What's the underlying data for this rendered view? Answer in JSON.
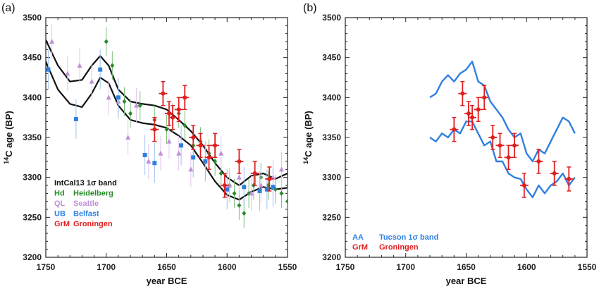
{
  "chart_data": [
    {
      "type": "scatter",
      "panel_label": "(a)",
      "xlabel": "year BCE",
      "ylabel_html": {
        "prefix": "14",
        "main": "C age (BP)"
      },
      "xlim": [
        1750,
        1550
      ],
      "ylim": [
        3200,
        3500
      ],
      "x_ticks": [
        "1750",
        "1700",
        "1650",
        "1600",
        "1550"
      ],
      "y_ticks": [
        "3200",
        "3250",
        "3300",
        "3350",
        "3400",
        "3450",
        "3500"
      ],
      "legend": [
        {
          "code": "IntCal13 1σ band",
          "name": "",
          "color": "#111111"
        },
        {
          "code": "Hd",
          "name": "Heidelberg",
          "color": "#2a8a2a"
        },
        {
          "code": "QL",
          "name": "Seattle",
          "color": "#c090d8"
        },
        {
          "code": "UB",
          "name": "Belfast",
          "color": "#2f7fe0"
        },
        {
          "code": "GrM",
          "name": "Groningen",
          "color": "#e02020"
        }
      ],
      "band": {
        "x": [
          1750,
          1740,
          1730,
          1720,
          1712,
          1705,
          1698,
          1690,
          1680,
          1670,
          1660,
          1650,
          1640,
          1630,
          1620,
          1610,
          1600,
          1590,
          1580,
          1570,
          1560,
          1550
        ],
        "upper": [
          3472,
          3440,
          3420,
          3422,
          3440,
          3452,
          3440,
          3410,
          3395,
          3392,
          3390,
          3385,
          3372,
          3358,
          3340,
          3318,
          3300,
          3290,
          3302,
          3305,
          3298,
          3305
        ],
        "lower": [
          3445,
          3410,
          3392,
          3388,
          3405,
          3425,
          3418,
          3390,
          3372,
          3368,
          3366,
          3362,
          3352,
          3340,
          3318,
          3295,
          3278,
          3272,
          3282,
          3288,
          3285,
          3287
        ]
      },
      "series": [
        {
          "name": "Heidelberg",
          "marker": "diamond",
          "color": "#2a8a2a",
          "x": [
            1700,
            1695,
            1685,
            1680,
            1672,
            1660,
            1650,
            1645,
            1640,
            1635,
            1628,
            1622,
            1615,
            1610,
            1605,
            1598,
            1594,
            1590,
            1586,
            1582,
            1578,
            1572,
            1566,
            1560,
            1555,
            1550
          ],
          "y": [
            3470,
            3440,
            3395,
            3380,
            3390,
            3372,
            3360,
            3375,
            3380,
            3365,
            3340,
            3345,
            3330,
            3320,
            3305,
            3290,
            3280,
            3265,
            3255,
            3280,
            3290,
            3300,
            3290,
            3285,
            3280,
            3270
          ],
          "err": [
            18,
            18,
            18,
            18,
            18,
            18,
            18,
            18,
            18,
            18,
            18,
            18,
            18,
            18,
            18,
            18,
            18,
            18,
            18,
            18,
            18,
            18,
            18,
            18,
            18,
            18
          ]
        },
        {
          "name": "Seattle",
          "marker": "triangle",
          "color": "#c090d8",
          "x": [
            1745,
            1732,
            1722,
            1712,
            1698,
            1690,
            1682,
            1675,
            1665,
            1655,
            1648,
            1640,
            1630,
            1618,
            1605,
            1598,
            1590,
            1580,
            1572,
            1562,
            1555
          ],
          "y": [
            3470,
            3430,
            3440,
            3420,
            3400,
            3395,
            3350,
            3390,
            3320,
            3330,
            3345,
            3330,
            3310,
            3320,
            3330,
            3290,
            3300,
            3280,
            3290,
            3300,
            3310
          ],
          "err": [
            22,
            22,
            22,
            22,
            22,
            22,
            22,
            22,
            22,
            22,
            22,
            22,
            22,
            22,
            22,
            22,
            22,
            22,
            22,
            22,
            22
          ]
        },
        {
          "name": "Belfast",
          "marker": "square",
          "color": "#2f7fe0",
          "x": [
            1748,
            1725,
            1705,
            1690,
            1668,
            1660,
            1638,
            1628,
            1618,
            1600,
            1586,
            1573,
            1567,
            1562
          ],
          "y": [
            3435,
            3373,
            3435,
            3400,
            3328,
            3318,
            3340,
            3325,
            3320,
            3285,
            3288,
            3283,
            3285,
            3288
          ],
          "err": [
            25,
            25,
            25,
            25,
            25,
            25,
            25,
            25,
            25,
            25,
            25,
            25,
            25,
            25
          ]
        },
        {
          "name": "Groningen",
          "marker": "circle",
          "color": "#e02020",
          "x": [
            1660,
            1653,
            1648,
            1645,
            1640,
            1635,
            1628,
            1622,
            1615,
            1610,
            1602,
            1590,
            1577,
            1565
          ],
          "y": [
            3360,
            3405,
            3380,
            3375,
            3385,
            3400,
            3350,
            3340,
            3325,
            3340,
            3290,
            3320,
            3305,
            3298
          ],
          "err": [
            15,
            15,
            15,
            15,
            15,
            15,
            15,
            15,
            15,
            15,
            15,
            15,
            15,
            15
          ]
        }
      ]
    },
    {
      "type": "scatter",
      "panel_label": "(b)",
      "xlabel": "year BCE",
      "ylabel_html": {
        "prefix": "14",
        "main": "C age (BP)"
      },
      "xlim": [
        1750,
        1550
      ],
      "ylim": [
        3200,
        3500
      ],
      "x_ticks": [
        "1750",
        "1700",
        "1650",
        "1600",
        "1550"
      ],
      "y_ticks": [
        "3200",
        "3250",
        "3300",
        "3350",
        "3400",
        "3450",
        "3500"
      ],
      "legend": [
        {
          "code": "AA",
          "name": "Tucson 1σ band",
          "color": "#2f7fe0"
        },
        {
          "code": "GrM",
          "name": "Groningen",
          "color": "#e02020"
        }
      ],
      "band_tucson": {
        "x": [
          1680,
          1675,
          1670,
          1665,
          1660,
          1655,
          1650,
          1645,
          1640,
          1635,
          1630,
          1625,
          1620,
          1615,
          1610,
          1605,
          1600,
          1595,
          1590,
          1585,
          1580,
          1575,
          1570,
          1565,
          1560
        ],
        "upper": [
          3400,
          3405,
          3420,
          3428,
          3420,
          3430,
          3435,
          3445,
          3420,
          3415,
          3395,
          3385,
          3375,
          3360,
          3350,
          3355,
          3330,
          3320,
          3335,
          3330,
          3345,
          3360,
          3375,
          3370,
          3355
        ],
        "lower": [
          3350,
          3345,
          3355,
          3350,
          3360,
          3355,
          3370,
          3370,
          3355,
          3340,
          3345,
          3320,
          3320,
          3305,
          3300,
          3298,
          3285,
          3275,
          3290,
          3280,
          3290,
          3295,
          3305,
          3290,
          3300
        ]
      },
      "series": [
        {
          "name": "Groningen",
          "marker": "circle",
          "color": "#e02020",
          "x": [
            1660,
            1653,
            1648,
            1645,
            1640,
            1635,
            1628,
            1622,
            1615,
            1610,
            1602,
            1590,
            1577,
            1565
          ],
          "y": [
            3360,
            3405,
            3380,
            3375,
            3385,
            3400,
            3350,
            3340,
            3325,
            3340,
            3290,
            3320,
            3305,
            3298
          ],
          "err": [
            15,
            15,
            15,
            15,
            15,
            15,
            15,
            15,
            15,
            15,
            15,
            15,
            15,
            15
          ]
        }
      ]
    }
  ]
}
